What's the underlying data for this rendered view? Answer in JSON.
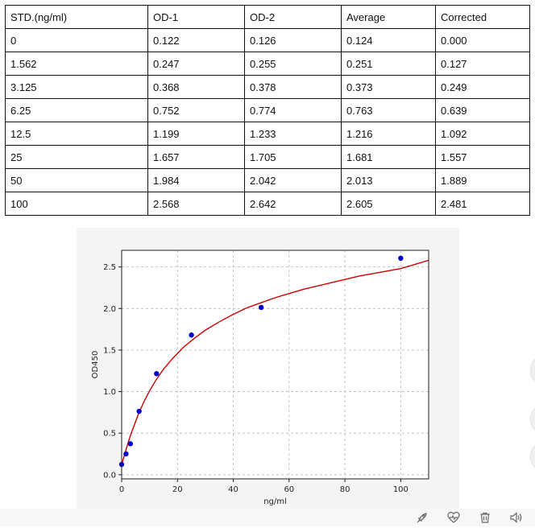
{
  "table": {
    "headers": [
      "STD.(ng/ml)",
      "OD-1",
      "OD-2",
      "Average",
      "Corrected"
    ],
    "rows": [
      [
        "0",
        "0.122",
        "0.126",
        "0.124",
        "0.000"
      ],
      [
        "1.562",
        "0.247",
        "0.255",
        "0.251",
        "0.127"
      ],
      [
        "3.125",
        "0.368",
        "0.378",
        "0.373",
        "0.249"
      ],
      [
        "6.25",
        "0.752",
        "0.774",
        "0.763",
        "0.639"
      ],
      [
        "12.5",
        "1.199",
        "1.233",
        "1.216",
        "1.092"
      ],
      [
        "25",
        "1.657",
        "1.705",
        "1.681",
        "1.557"
      ],
      [
        "50",
        "1.984",
        "2.042",
        "2.013",
        "1.889"
      ],
      [
        "100",
        "2.568",
        "2.642",
        "2.605",
        "2.481"
      ]
    ]
  },
  "chart_data": {
    "type": "scatter",
    "title": "",
    "xlabel": "ng/ml",
    "ylabel": "OD450",
    "xlim": [
      0,
      110
    ],
    "ylim": [
      -0.05,
      2.7
    ],
    "xticks": [
      0,
      20,
      40,
      60,
      80,
      100
    ],
    "yticks": [
      0.0,
      0.5,
      1.0,
      1.5,
      2.0,
      2.5
    ],
    "xtick_labels": [
      "0",
      "20",
      "40",
      "60",
      "80",
      "100"
    ],
    "ytick_labels": [
      "0.0",
      "0.5",
      "1.0",
      "1.5",
      "2.0",
      "2.5"
    ],
    "grid": true,
    "points": {
      "x": [
        0,
        1.562,
        3.125,
        6.25,
        12.5,
        25,
        50,
        100
      ],
      "y": [
        0.124,
        0.251,
        0.373,
        0.763,
        1.216,
        1.681,
        2.013,
        2.605
      ],
      "color": "#0000cc"
    },
    "fit_curve": {
      "x": [
        0,
        1,
        2,
        3,
        4,
        6,
        8,
        10,
        12.5,
        15,
        18,
        22,
        26,
        30,
        35,
        40,
        45,
        50,
        55,
        60,
        65,
        70,
        75,
        80,
        85,
        90,
        95,
        100,
        105,
        110
      ],
      "y": [
        0.12,
        0.24,
        0.35,
        0.46,
        0.55,
        0.73,
        0.88,
        1.01,
        1.15,
        1.27,
        1.39,
        1.53,
        1.64,
        1.74,
        1.84,
        1.93,
        2.01,
        2.07,
        2.13,
        2.18,
        2.23,
        2.27,
        2.31,
        2.35,
        2.39,
        2.42,
        2.45,
        2.48,
        2.53,
        2.58
      ],
      "color": "#cc0000"
    }
  },
  "bottom_bar": {
    "icons": [
      "rocket-icon",
      "heart-pulse-icon",
      "trash-icon",
      "speaker-icon"
    ],
    "icon_color": "#666666"
  }
}
